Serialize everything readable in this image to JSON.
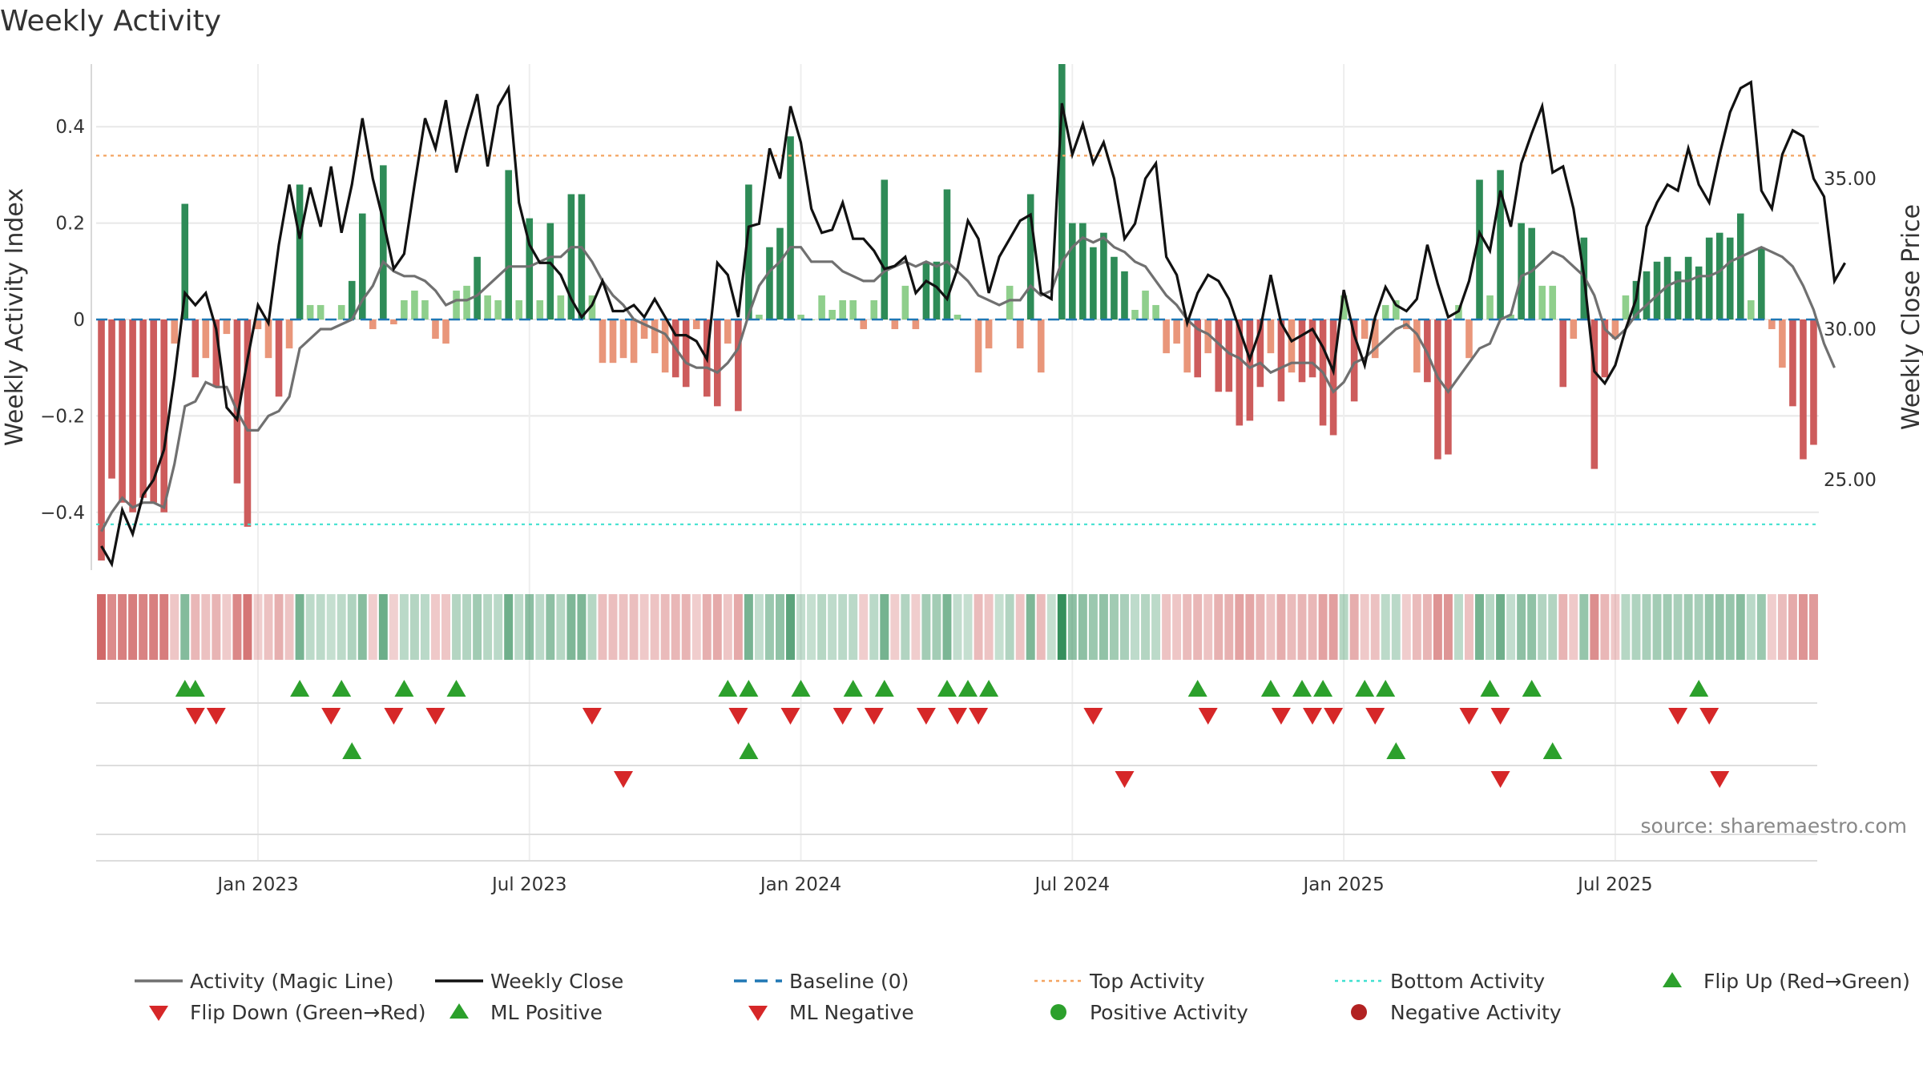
{
  "chart_data": {
    "type": "bar",
    "title": "Weekly Activity",
    "ylabel_left": "Weekly Activity Index",
    "ylabel_right": "Weekly Close Price",
    "ylim_left": [
      -0.52,
      0.53
    ],
    "ylim_right": [
      22.0,
      38.8
    ],
    "left_ticks": [
      {
        "v": 0.4,
        "t": "0.4"
      },
      {
        "v": 0.2,
        "t": "0.2"
      },
      {
        "v": 0,
        "t": "0"
      },
      {
        "v": -0.2,
        "t": "−0.2"
      },
      {
        "v": -0.4,
        "t": "−0.4"
      }
    ],
    "right_ticks": [
      {
        "v": 35.0,
        "t": "35.00"
      },
      {
        "v": 30.0,
        "t": "30.00"
      },
      {
        "v": 25.0,
        "t": "25.00"
      }
    ],
    "x_ticks": [
      {
        "i": 15,
        "t": "Jan 2023"
      },
      {
        "i": 41,
        "t": "Jul 2023"
      },
      {
        "i": 67,
        "t": "Jan 2024"
      },
      {
        "i": 93,
        "t": "Jul 2024"
      },
      {
        "i": 119,
        "t": "Jan 2025"
      },
      {
        "i": 145,
        "t": "Jul 2025"
      }
    ],
    "thresholds": {
      "top": 0.34,
      "bottom": -0.425,
      "baseline": 0
    },
    "colors": {
      "strong_pos": "#2e8b57",
      "weak_pos": "#8fcf8c",
      "strong_neg": "#cd5c5c",
      "weak_neg": "#e9967a",
      "close_line": "#111111",
      "magic_line": "#707070",
      "baseline": "#1f77b4",
      "top_line": "#f4a460",
      "bottom_line": "#40e0d0",
      "flip_up": "#2ca02c",
      "flip_down": "#d62728"
    },
    "activity": [
      -0.5,
      -0.33,
      -0.38,
      -0.4,
      -0.37,
      -0.38,
      -0.4,
      -0.05,
      0.24,
      -0.12,
      -0.08,
      -0.14,
      -0.03,
      -0.34,
      -0.43,
      -0.02,
      -0.08,
      -0.16,
      -0.06,
      0.28,
      0.03,
      0.03,
      0.0,
      0.03,
      0.08,
      0.22,
      -0.02,
      0.32,
      -0.01,
      0.04,
      0.06,
      0.04,
      -0.04,
      -0.05,
      0.06,
      0.07,
      0.13,
      0.05,
      0.04,
      0.31,
      0.04,
      0.21,
      0.04,
      0.2,
      0.05,
      0.26,
      0.26,
      0.05,
      -0.09,
      -0.09,
      -0.08,
      -0.09,
      -0.04,
      -0.07,
      -0.11,
      -0.12,
      -0.14,
      -0.02,
      -0.16,
      -0.18,
      -0.05,
      -0.19,
      0.28,
      0.01,
      0.15,
      0.19,
      0.38,
      0.01,
      0.0,
      0.05,
      0.02,
      0.04,
      0.04,
      -0.02,
      0.04,
      0.29,
      -0.02,
      0.07,
      -0.02,
      0.12,
      0.12,
      0.27,
      0.01,
      0.0,
      -0.11,
      -0.06,
      0.0,
      0.07,
      -0.06,
      0.26,
      -0.11,
      0.0,
      0.53,
      0.2,
      0.2,
      0.15,
      0.18,
      0.13,
      0.1,
      0.02,
      0.06,
      0.03,
      -0.07,
      -0.05,
      -0.11,
      -0.12,
      -0.07,
      -0.15,
      -0.15,
      -0.22,
      -0.21,
      -0.14,
      -0.07,
      -0.17,
      -0.11,
      -0.13,
      -0.12,
      -0.22,
      -0.24,
      0.05,
      -0.17,
      -0.04,
      -0.08,
      0.03,
      0.04,
      -0.02,
      -0.11,
      -0.13,
      -0.29,
      -0.28,
      0.03,
      -0.08,
      0.29,
      0.05,
      0.31,
      0.01,
      0.2,
      0.19,
      0.07,
      0.07,
      -0.14,
      -0.04,
      0.17,
      -0.31,
      -0.12,
      -0.04,
      0.05,
      0.08,
      0.1,
      0.12,
      0.13,
      0.1,
      0.13,
      0.11,
      0.17,
      0.18,
      0.17,
      0.22,
      0.04,
      0.15,
      -0.02,
      -0.1,
      -0.18,
      -0.29,
      -0.26
    ],
    "weekly_close": [
      22.8,
      22.2,
      24.0,
      23.2,
      24.5,
      25.0,
      26.0,
      28.4,
      31.2,
      30.8,
      31.2,
      30.0,
      27.4,
      27.0,
      29.0,
      30.8,
      30.2,
      32.8,
      34.8,
      33.0,
      34.7,
      33.4,
      35.4,
      33.2,
      34.8,
      37.0,
      35.0,
      33.6,
      32.0,
      32.5,
      34.8,
      37.0,
      36.0,
      37.6,
      35.2,
      36.6,
      37.8,
      35.4,
      37.4,
      38.0,
      34.2,
      32.8,
      32.2,
      32.2,
      31.8,
      31.0,
      30.4,
      30.8,
      31.6,
      30.6,
      30.6,
      30.8,
      30.4,
      31.0,
      30.4,
      29.8,
      29.8,
      29.6,
      29.0,
      32.2,
      31.8,
      30.4,
      33.4,
      33.5,
      36.0,
      35.0,
      37.4,
      36.2,
      34.0,
      33.2,
      33.3,
      34.2,
      33.0,
      33.0,
      32.6,
      32.0,
      32.1,
      32.4,
      31.2,
      31.6,
      31.4,
      31.0,
      32.0,
      33.6,
      33.0,
      31.2,
      32.4,
      33.0,
      33.6,
      33.8,
      31.2,
      31.0,
      37.5,
      35.8,
      36.8,
      35.5,
      36.2,
      35.0,
      33.0,
      33.5,
      35.0,
      35.5,
      32.4,
      31.8,
      30.2,
      31.2,
      31.8,
      31.6,
      31.0,
      30.0,
      29.0,
      30.0,
      31.8,
      30.2,
      29.6,
      29.8,
      30.0,
      29.4,
      28.6,
      31.3,
      29.8,
      28.8,
      30.4,
      31.4,
      30.8,
      30.6,
      31.0,
      32.8,
      31.5,
      30.4,
      30.6,
      31.6,
      33.2,
      32.6,
      34.6,
      33.4,
      35.5,
      36.5,
      37.4,
      35.2,
      35.4,
      34.0,
      31.8,
      28.6,
      28.2,
      28.8,
      30.0,
      31.0,
      33.4,
      34.2,
      34.8,
      34.6,
      36.0,
      34.8,
      34.2,
      35.8,
      37.2,
      38.0,
      38.2,
      34.6,
      34.0,
      35.8,
      36.6,
      36.4,
      35.0,
      34.4,
      31.6,
      32.2
    ],
    "magic_line": [
      -0.44,
      -0.4,
      -0.37,
      -0.39,
      -0.38,
      -0.38,
      -0.39,
      -0.3,
      -0.18,
      -0.17,
      -0.13,
      -0.14,
      -0.14,
      -0.19,
      -0.23,
      -0.23,
      -0.2,
      -0.19,
      -0.16,
      -0.06,
      -0.04,
      -0.02,
      -0.02,
      -0.01,
      0.0,
      0.04,
      0.07,
      0.12,
      0.1,
      0.09,
      0.09,
      0.08,
      0.06,
      0.03,
      0.04,
      0.04,
      0.05,
      0.07,
      0.09,
      0.11,
      0.11,
      0.11,
      0.12,
      0.13,
      0.13,
      0.15,
      0.15,
      0.12,
      0.08,
      0.05,
      0.03,
      0.0,
      -0.01,
      -0.02,
      -0.03,
      -0.06,
      -0.09,
      -0.1,
      -0.1,
      -0.11,
      -0.09,
      -0.06,
      0.01,
      0.07,
      0.1,
      0.12,
      0.15,
      0.15,
      0.12,
      0.12,
      0.12,
      0.1,
      0.09,
      0.08,
      0.08,
      0.1,
      0.11,
      0.12,
      0.11,
      0.12,
      0.11,
      0.12,
      0.1,
      0.08,
      0.05,
      0.04,
      0.03,
      0.04,
      0.04,
      0.07,
      0.05,
      0.06,
      0.12,
      0.15,
      0.17,
      0.16,
      0.17,
      0.15,
      0.14,
      0.12,
      0.11,
      0.08,
      0.05,
      0.03,
      0.0,
      -0.02,
      -0.03,
      -0.05,
      -0.07,
      -0.08,
      -0.1,
      -0.09,
      -0.11,
      -0.1,
      -0.09,
      -0.09,
      -0.09,
      -0.11,
      -0.15,
      -0.13,
      -0.09,
      -0.08,
      -0.06,
      -0.04,
      -0.02,
      -0.01,
      -0.03,
      -0.07,
      -0.12,
      -0.15,
      -0.12,
      -0.09,
      -0.06,
      -0.05,
      0.0,
      0.01,
      0.09,
      0.1,
      0.12,
      0.14,
      0.13,
      0.11,
      0.09,
      0.05,
      -0.02,
      -0.04,
      -0.02,
      0.01,
      0.03,
      0.05,
      0.07,
      0.08,
      0.08,
      0.09,
      0.09,
      0.1,
      0.12,
      0.13,
      0.14,
      0.15,
      0.14,
      0.13,
      0.11,
      0.07,
      0.02,
      -0.05,
      -0.1
    ],
    "heat_strip": "activity",
    "flip_up_row1": [
      8,
      9,
      19,
      23,
      29,
      34,
      60,
      62,
      67,
      72,
      75,
      81,
      83,
      85,
      105,
      112,
      115,
      117,
      121,
      123,
      133,
      137,
      153
    ],
    "flip_down_row1": [
      9,
      11,
      22,
      28,
      32,
      47,
      61,
      66,
      71,
      74,
      79,
      82,
      84,
      95,
      106,
      113,
      116,
      118,
      122,
      131,
      134,
      151,
      154
    ],
    "flip_up_row2": [
      24,
      62,
      124,
      139
    ],
    "flip_down_row2": [
      50,
      98,
      134,
      155
    ],
    "source": "source: sharemaestro.com",
    "legend": [
      {
        "label": "Activity (Magic Line)",
        "sym": "line",
        "color": "#707070"
      },
      {
        "label": "Weekly Close",
        "sym": "line",
        "color": "#111111"
      },
      {
        "label": "Baseline (0)",
        "sym": "dash",
        "color": "#1f77b4"
      },
      {
        "label": "Top Activity",
        "sym": "dot",
        "color": "#f4a460"
      },
      {
        "label": "Bottom Activity",
        "sym": "dot",
        "color": "#40e0d0"
      },
      {
        "label": "Flip Up (Red→Green)",
        "sym": "up",
        "color": "#2ca02c"
      },
      {
        "label": "Flip Down (Green→Red)",
        "sym": "down",
        "color": "#d62728"
      },
      {
        "label": "ML Positive",
        "sym": "up",
        "color": "#2ca02c"
      },
      {
        "label": "ML Negative",
        "sym": "down",
        "color": "#d62728"
      },
      {
        "label": "Positive Activity",
        "sym": "circle",
        "color": "#2ca02c"
      },
      {
        "label": "Negative Activity",
        "sym": "circle",
        "color": "#b22222"
      }
    ]
  }
}
